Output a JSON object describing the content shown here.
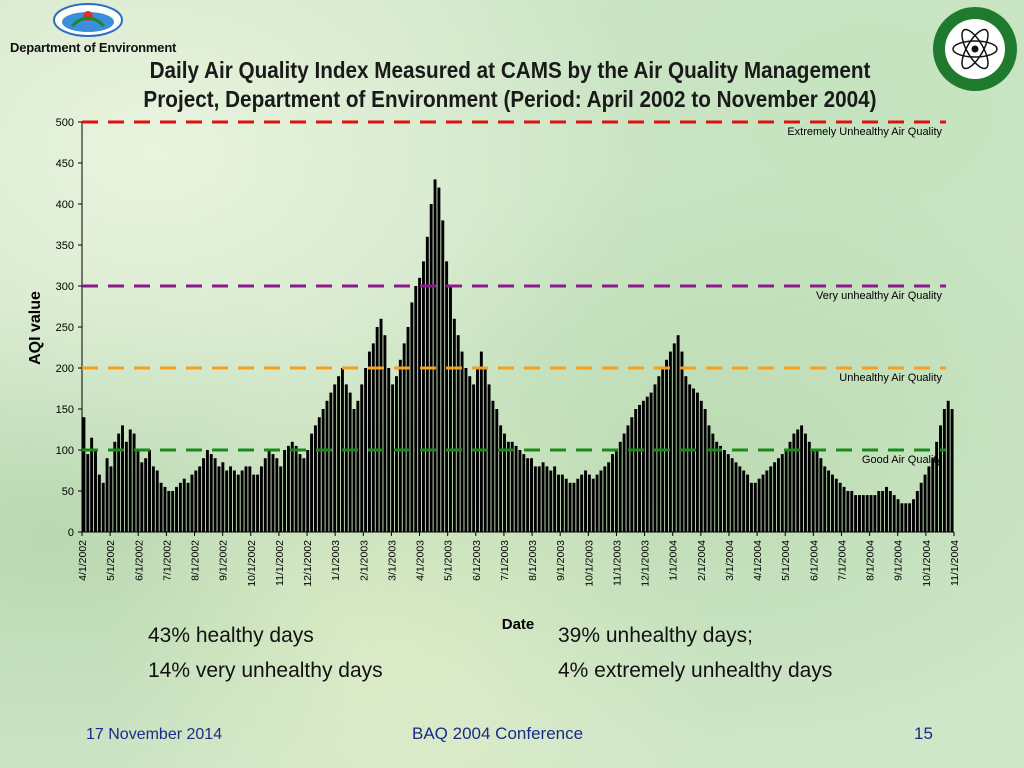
{
  "header": {
    "department": "Department of Environment",
    "title_line1": "Daily Air Quality Index Measured at CAMS by the Air Quality Management",
    "title_line2": "Project, Department of Environment (Period: April 2002 to November 2004)"
  },
  "chart_data": {
    "type": "bar",
    "ylabel": "AQI value",
    "xlabel": "Date",
    "ylim": [
      0,
      500
    ],
    "yticks": [
      0,
      50,
      100,
      150,
      200,
      250,
      300,
      350,
      400,
      450,
      500
    ],
    "x_tick_labels": [
      "4/1/2002",
      "5/1/2002",
      "6/1/2002",
      "7/1/2002",
      "8/1/2002",
      "9/1/2002",
      "10/1/2002",
      "11/1/2002",
      "12/1/2002",
      "1/1/2003",
      "2/1/2003",
      "3/1/2003",
      "4/1/2003",
      "5/1/2003",
      "6/1/2003",
      "7/1/2003",
      "8/1/2003",
      "9/1/2003",
      "10/1/2003",
      "11/1/2003",
      "12/1/2003",
      "1/1/2004",
      "2/1/2004",
      "3/1/2004",
      "4/1/2004",
      "5/1/2004",
      "6/1/2004",
      "7/1/2004",
      "8/1/2004",
      "9/1/2004",
      "10/1/2004",
      "11/1/2004"
    ],
    "bar_color": "#000000",
    "thresholds": [
      {
        "name": "Extremely Unhealthy Air Quality",
        "value": 500,
        "color": "#e01010"
      },
      {
        "name": "Very unhealthy Air Quality",
        "value": 300,
        "color": "#8b1a8b"
      },
      {
        "name": "Unhealthy Air Quality",
        "value": 200,
        "color": "#f5a020"
      },
      {
        "name": "Good Air Quality",
        "value": 100,
        "color": "#1a8a1a"
      }
    ],
    "series": [
      {
        "values": [
          140,
          95,
          115,
          100,
          70,
          60,
          90,
          80,
          110,
          120,
          130,
          110,
          125,
          120,
          100,
          85,
          90,
          100,
          80,
          75,
          60,
          55,
          50,
          50,
          55,
          60,
          65,
          60,
          70,
          75,
          80,
          90,
          100,
          95,
          90,
          80,
          85,
          75,
          80,
          75,
          70,
          75,
          80,
          80,
          70,
          70,
          80,
          90,
          100,
          95,
          90,
          80,
          100,
          105,
          110,
          105,
          95,
          90,
          100,
          120,
          130,
          140,
          150,
          160,
          170,
          180,
          190,
          200,
          180,
          170,
          150,
          160,
          180,
          200,
          220,
          230,
          250,
          260,
          240,
          200,
          180,
          190,
          210,
          230,
          250,
          280,
          300,
          310,
          330,
          360,
          400,
          430,
          420,
          380,
          330,
          300,
          260,
          240,
          220,
          200,
          190,
          180,
          200,
          220,
          200,
          180,
          160,
          150,
          130,
          120,
          110,
          110,
          105,
          100,
          95,
          90,
          90,
          80,
          80,
          85,
          80,
          75,
          80,
          70,
          70,
          65,
          60,
          60,
          65,
          70,
          75,
          70,
          65,
          70,
          75,
          80,
          85,
          95,
          100,
          110,
          120,
          130,
          140,
          150,
          155,
          160,
          165,
          170,
          180,
          190,
          200,
          210,
          220,
          230,
          240,
          220,
          190,
          180,
          175,
          170,
          160,
          150,
          130,
          120,
          110,
          105,
          100,
          95,
          90,
          85,
          80,
          75,
          70,
          60,
          60,
          65,
          70,
          75,
          80,
          85,
          90,
          95,
          100,
          110,
          120,
          125,
          130,
          120,
          110,
          100,
          100,
          90,
          80,
          75,
          70,
          65,
          60,
          55,
          50,
          50,
          45,
          45,
          45,
          45,
          45,
          45,
          50,
          50,
          55,
          50,
          45,
          40,
          35,
          35,
          35,
          40,
          50,
          60,
          70,
          80,
          90,
          110,
          130,
          150,
          160,
          150
        ]
      }
    ]
  },
  "stats": {
    "left_1": "43% healthy days",
    "left_2": "14% very unhealthy days",
    "right_1": "39% unhealthy days;",
    "right_2": "4% extremely unhealthy days"
  },
  "footer": {
    "date": "17 November 2014",
    "conference": "BAQ 2004 Conference",
    "page": "15"
  }
}
